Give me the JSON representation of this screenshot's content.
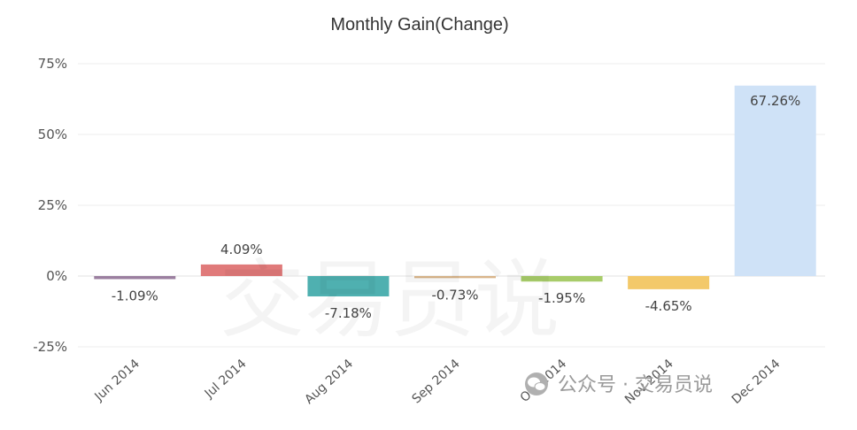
{
  "chart_data": {
    "type": "bar",
    "title": "Monthly Gain(Change)",
    "categories": [
      "Jun 2014",
      "Jul 2014",
      "Aug 2014",
      "Sep 2014",
      "Oct 2014",
      "Nov 2014",
      "Dec 2014"
    ],
    "values": [
      -1.09,
      4.09,
      -7.18,
      -0.73,
      -1.95,
      -4.65,
      67.26
    ],
    "data_labels": [
      "-1.09%",
      "4.09%",
      "-7.18%",
      "-0.73%",
      "-1.95%",
      "-4.65%",
      "67.26%"
    ],
    "colors": [
      "#9b7fa0",
      "#e07a7a",
      "#4fb0b0",
      "#d9b58a",
      "#a8cc6a",
      "#f3c96a",
      "#cfe2f7"
    ],
    "yticks": [
      75,
      50,
      25,
      0,
      -25
    ],
    "ytick_labels": [
      "75%",
      "50%",
      "25%",
      "0%",
      "-25%"
    ],
    "ylim": [
      -25,
      75
    ],
    "xlabel": "",
    "ylabel": "",
    "grid": true,
    "legend": false
  },
  "watermark": {
    "big_text": "交易员说",
    "small_text": "公众号 · 交易员说",
    "icon": "wechat-icon"
  }
}
